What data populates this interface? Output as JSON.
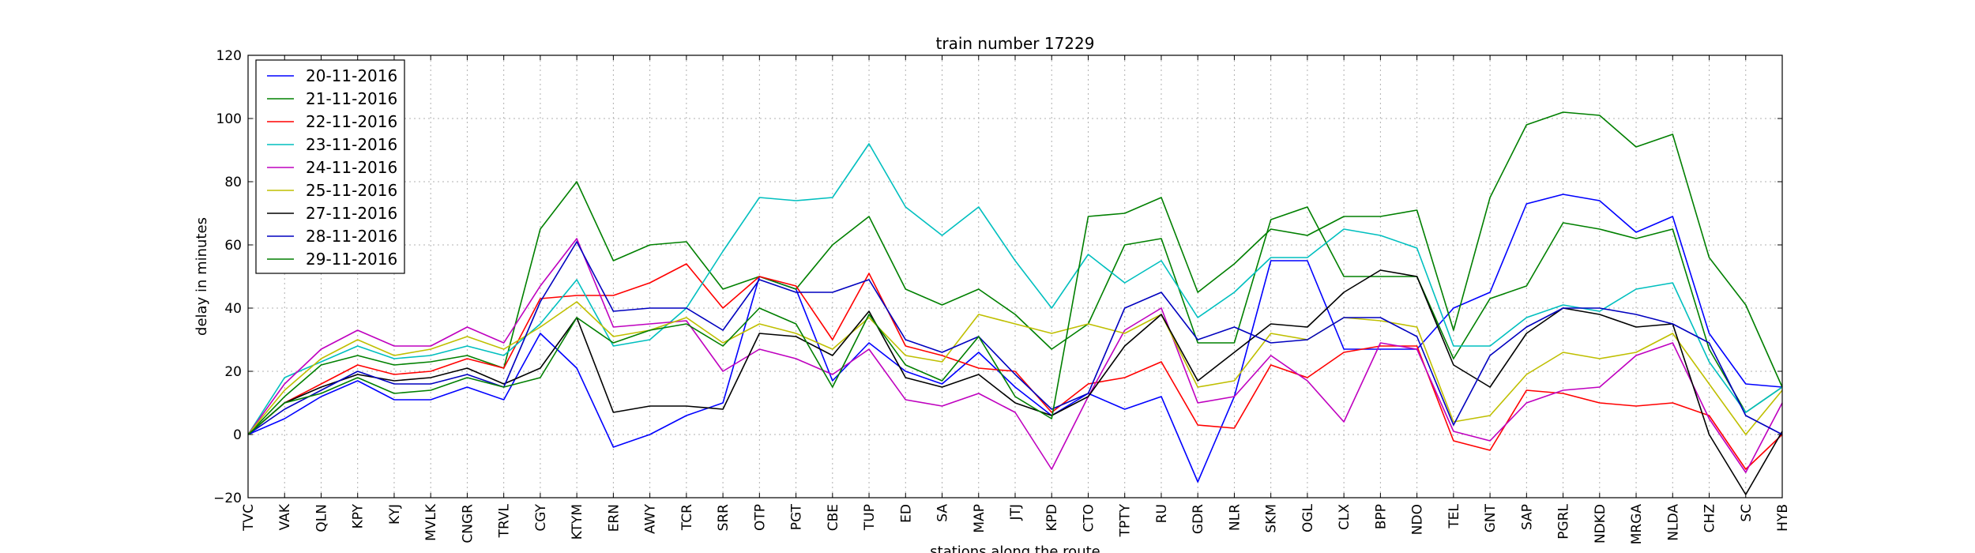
{
  "chart_data": {
    "type": "line",
    "title": "train number 17229",
    "xlabel": "stations along the route",
    "ylabel": "delay in minutes",
    "ylim": [
      -20,
      120
    ],
    "yticks": [
      "−20",
      "0",
      "20",
      "40",
      "60",
      "80",
      "100",
      "120"
    ],
    "grid": true,
    "legend_position": "top-left",
    "categories": [
      "TVC",
      "VAK",
      "QLN",
      "KPY",
      "KYJ",
      "MVLK",
      "CNGR",
      "TRVL",
      "CGY",
      "KTYM",
      "ERN",
      "AWY",
      "TCR",
      "SRR",
      "OTP",
      "PGT",
      "CBE",
      "TUP",
      "ED",
      "SA",
      "MAP",
      "JTJ",
      "KPD",
      "CTO",
      "TPTY",
      "RU",
      "GDR",
      "NLR",
      "SKM",
      "OGL",
      "CLX",
      "BPP",
      "NDO",
      "TEL",
      "GNT",
      "SAP",
      "PGRL",
      "NDKD",
      "MRGA",
      "NLDA",
      "CHZ",
      "SC",
      "HYB"
    ],
    "series": [
      {
        "name": "20-11-2016",
        "color": "#0000ff",
        "values": [
          0,
          5,
          12,
          17,
          11,
          11,
          15,
          11,
          32,
          21,
          -4,
          0,
          6,
          10,
          50,
          46,
          17,
          29,
          20,
          16,
          26,
          15,
          6,
          13,
          8,
          12,
          -15,
          12,
          55,
          55,
          27,
          27,
          27,
          40,
          45,
          73,
          76,
          74,
          64,
          69,
          32,
          16,
          15
        ]
      },
      {
        "name": "21-11-2016",
        "color": "#008000",
        "values": [
          0,
          12,
          22,
          25,
          22,
          23,
          25,
          21,
          65,
          80,
          55,
          60,
          61,
          46,
          50,
          46,
          60,
          69,
          46,
          41,
          46,
          38,
          27,
          35,
          60,
          62,
          29,
          29,
          68,
          72,
          50,
          50,
          50,
          24,
          43,
          47,
          67,
          65,
          62,
          65,
          27,
          7,
          15
        ]
      },
      {
        "name": "22-11-2016",
        "color": "#ff0000",
        "values": [
          0,
          10,
          16,
          22,
          19,
          20,
          24,
          21,
          43,
          44,
          44,
          48,
          54,
          40,
          50,
          47,
          30,
          51,
          28,
          25,
          21,
          20,
          7,
          16,
          18,
          23,
          3,
          2,
          22,
          18,
          26,
          28,
          28,
          -2,
          -5,
          14,
          13,
          10,
          9,
          10,
          6,
          -11,
          0
        ]
      },
      {
        "name": "23-11-2016",
        "color": "#00bfbf",
        "values": [
          0,
          18,
          23,
          28,
          24,
          25,
          28,
          25,
          35,
          49,
          28,
          30,
          40,
          58,
          75,
          74,
          75,
          92,
          72,
          63,
          72,
          55,
          40,
          57,
          48,
          55,
          37,
          45,
          56,
          56,
          65,
          63,
          59,
          28,
          28,
          37,
          41,
          39,
          46,
          48,
          23,
          7,
          15
        ]
      },
      {
        "name": "24-11-2016",
        "color": "#bf00bf",
        "values": [
          0,
          16,
          27,
          33,
          28,
          28,
          34,
          29,
          47,
          62,
          34,
          35,
          36,
          20,
          27,
          24,
          19,
          27,
          11,
          9,
          13,
          7,
          -11,
          12,
          33,
          40,
          10,
          12,
          25,
          17,
          4,
          29,
          27,
          1,
          -2,
          10,
          14,
          15,
          25,
          29,
          5,
          -12,
          10
        ]
      },
      {
        "name": "25-11-2016",
        "color": "#bfbf00",
        "values": [
          0,
          14,
          24,
          30,
          25,
          27,
          31,
          27,
          34,
          42,
          31,
          33,
          37,
          29,
          35,
          32,
          27,
          37,
          25,
          23,
          38,
          35,
          32,
          35,
          32,
          38,
          15,
          17,
          32,
          30,
          37,
          36,
          34,
          4,
          6,
          19,
          26,
          24,
          26,
          32,
          16,
          0,
          14
        ]
      },
      {
        "name": "27-11-2016",
        "color": "#000000",
        "values": [
          0,
          10,
          15,
          19,
          17,
          18,
          21,
          16,
          21,
          37,
          7,
          9,
          9,
          8,
          32,
          31,
          25,
          39,
          18,
          15,
          19,
          10,
          6,
          12,
          28,
          38,
          17,
          26,
          35,
          34,
          45,
          52,
          50,
          22,
          15,
          32,
          40,
          38,
          34,
          35,
          0,
          -19,
          1
        ]
      },
      {
        "name": "28-11-2016",
        "color": "#0000bf",
        "values": [
          0,
          8,
          14,
          20,
          16,
          16,
          19,
          15,
          42,
          61,
          39,
          40,
          40,
          33,
          49,
          45,
          45,
          49,
          30,
          26,
          31,
          19,
          8,
          13,
          40,
          45,
          30,
          34,
          29,
          30,
          37,
          37,
          31,
          3,
          25,
          34,
          40,
          40,
          38,
          35,
          29,
          6,
          0
        ]
      },
      {
        "name": "29-11-2016",
        "color": "#007f00",
        "values": [
          0,
          10,
          13,
          18,
          13,
          14,
          18,
          15,
          18,
          37,
          29,
          33,
          35,
          28,
          40,
          35,
          15,
          38,
          22,
          17,
          31,
          12,
          5,
          69,
          70,
          75,
          45,
          54,
          65,
          63,
          69,
          69,
          71,
          33,
          75,
          98,
          102,
          101,
          91,
          95,
          56,
          41,
          15
        ]
      }
    ]
  }
}
